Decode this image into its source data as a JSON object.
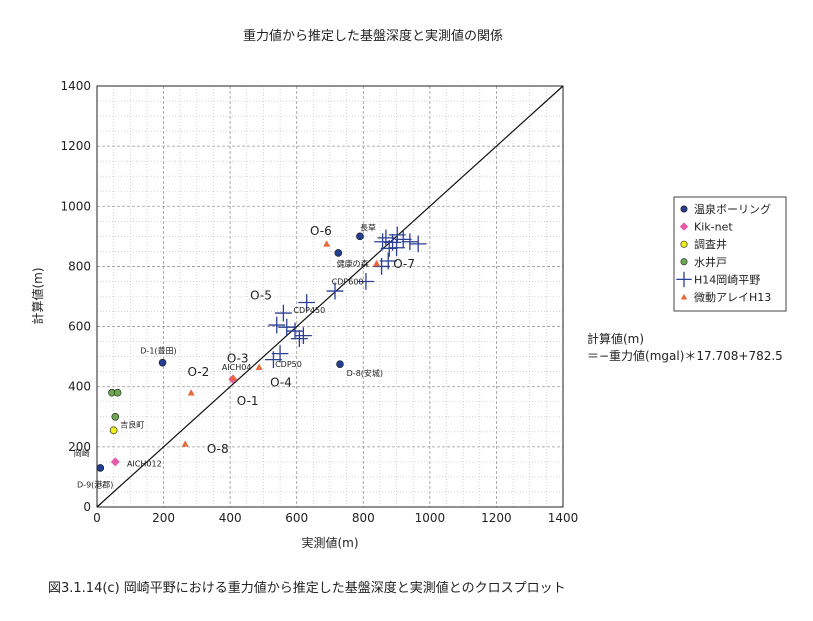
{
  "chart_data": {
    "type": "scatter",
    "title": "重力値から推定した基盤深度と実測値の関係",
    "xlabel": "実測値(m)",
    "ylabel": "計算値(m)",
    "xlim": [
      0,
      1400
    ],
    "ylim": [
      0,
      1400
    ],
    "x_ticks": [
      "0",
      "200",
      "400",
      "600",
      "800",
      "1000",
      "1200",
      "1400"
    ],
    "y_ticks": [
      "0",
      "200",
      "400",
      "600",
      "800",
      "1000",
      "1200",
      "1400"
    ],
    "grid": true,
    "legend_position": "right",
    "reference_line": {
      "from": [
        0,
        0
      ],
      "to": [
        1400,
        1400
      ]
    },
    "series": [
      {
        "name": "温泉ボーリング",
        "marker": "circle",
        "color": "#243f8f",
        "points": [
          [
            197,
            480
          ],
          [
            790,
            900
          ],
          [
            725,
            845
          ],
          [
            730,
            475
          ],
          [
            10,
            130
          ]
        ]
      },
      {
        "name": "Kik-net",
        "marker": "diamond",
        "color": "#e85aa8",
        "points": [
          [
            408,
            425
          ],
          [
            55,
            150
          ]
        ]
      },
      {
        "name": "調査井",
        "marker": "circle",
        "color": "#f2ee1a",
        "points": [
          [
            50,
            255
          ]
        ]
      },
      {
        "name": "水井戸",
        "marker": "circle",
        "color": "#6aa84f",
        "points": [
          [
            45,
            380
          ],
          [
            62,
            380
          ],
          [
            55,
            300
          ]
        ]
      },
      {
        "name": "H14岡崎平野",
        "marker": "plus",
        "color": "#2b3f94",
        "points": [
          [
            868,
            895
          ],
          [
            888,
            880
          ],
          [
            902,
            905
          ],
          [
            920,
            890
          ],
          [
            858,
            882
          ],
          [
            878,
            860
          ],
          [
            900,
            862
          ],
          [
            940,
            882
          ],
          [
            965,
            875
          ],
          [
            855,
            800
          ],
          [
            875,
            818
          ],
          [
            808,
            750
          ],
          [
            715,
            718
          ],
          [
            630,
            680
          ],
          [
            560,
            645
          ],
          [
            540,
            605
          ],
          [
            570,
            598
          ],
          [
            595,
            585
          ],
          [
            608,
            560
          ],
          [
            620,
            570
          ],
          [
            550,
            510
          ],
          [
            530,
            490
          ]
        ]
      },
      {
        "name": "微動アレイH13",
        "marker": "triangle",
        "color": "#e8693a",
        "points": [
          [
            690,
            875
          ],
          [
            840,
            810
          ],
          [
            487,
            465
          ],
          [
            410,
            430
          ],
          [
            283,
            380
          ],
          [
            265,
            210
          ]
        ]
      }
    ],
    "annotations": [
      {
        "text": "長草",
        "x": 790,
        "y": 920,
        "style": "small"
      },
      {
        "text": "健康の森",
        "x": 720,
        "y": 800,
        "style": "small"
      },
      {
        "text": "CDP600",
        "x": 705,
        "y": 740,
        "style": "small"
      },
      {
        "text": "CDP450",
        "x": 590,
        "y": 645,
        "style": "small"
      },
      {
        "text": "CDP50",
        "x": 535,
        "y": 465,
        "style": "small"
      },
      {
        "text": "D-1(豊田)",
        "x": 130,
        "y": 510,
        "style": "small"
      },
      {
        "text": "AICH04",
        "x": 375,
        "y": 455,
        "style": "small"
      },
      {
        "text": "D-8(安城)",
        "x": 750,
        "y": 435,
        "style": "small"
      },
      {
        "text": "吉良町",
        "x": 70,
        "y": 265,
        "style": "small"
      },
      {
        "text": "岡崎",
        "x": -70,
        "y": 170,
        "style": "small"
      },
      {
        "text": "AICH012",
        "x": 90,
        "y": 135,
        "style": "small"
      },
      {
        "text": "D-9(港郡)",
        "x": -60,
        "y": 65,
        "style": "small"
      },
      {
        "text": "O-6",
        "x": 640,
        "y": 905,
        "style": "big"
      },
      {
        "text": "O-7",
        "x": 890,
        "y": 795,
        "style": "big"
      },
      {
        "text": "O-5",
        "x": 460,
        "y": 690,
        "style": "big"
      },
      {
        "text": "O-3",
        "x": 390,
        "y": 480,
        "style": "big"
      },
      {
        "text": "O-2",
        "x": 272,
        "y": 435,
        "style": "big"
      },
      {
        "text": "O-4",
        "x": 520,
        "y": 400,
        "style": "big"
      },
      {
        "text": "O-1",
        "x": 420,
        "y": 340,
        "style": "big"
      },
      {
        "text": "O-8",
        "x": 330,
        "y": 180,
        "style": "big"
      }
    ]
  },
  "formula": {
    "line1": "計算値(m)",
    "line2": "＝−重力値(mgal)＊17.708+782.5"
  },
  "caption": "図3.1.14(c)  岡崎平野における重力値から推定した基盤深度と実測値とのクロスプロット"
}
